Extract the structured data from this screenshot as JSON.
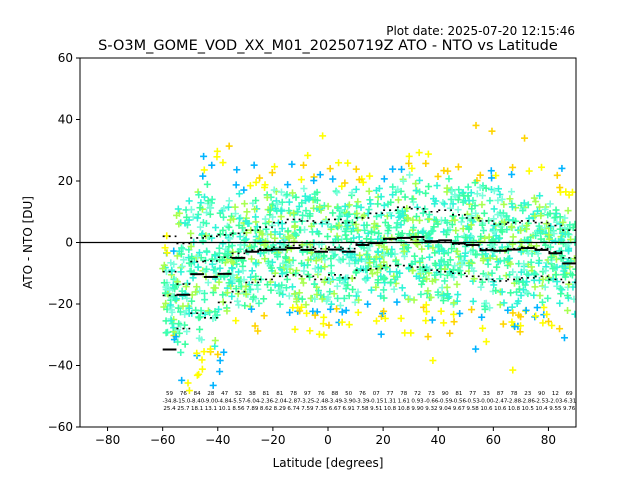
{
  "header": {
    "plot_date": "Plot date: 2025-07-20 12:15:46",
    "title": "S-O3M_GOME_VOD_XX_M01_20250719Z ATO - NTO vs Latitude"
  },
  "chart_data": {
    "type": "scatter",
    "title": "S-O3M_GOME_VOD_XX_M01_20250719Z ATO - NTO vs Latitude",
    "xlabel": "Latitude [degrees]",
    "ylabel": "ATO - NTO [DU]",
    "xlim": [
      -90,
      90
    ],
    "ylim": [
      -60,
      60
    ],
    "xticks": [
      -80,
      -60,
      -40,
      -20,
      0,
      20,
      40,
      60,
      80
    ],
    "yticks": [
      -60,
      -40,
      -20,
      0,
      20,
      40,
      60
    ],
    "grid": false,
    "zero_line": 0,
    "marker": "+",
    "point_colors": [
      "#3fffb8",
      "#3cffa0",
      "#7affdc",
      "#2ff5d8",
      "#a8ff50",
      "#ffff00",
      "#ffd400",
      "#ffb000",
      "#00b4ff",
      "#0040ff",
      "#66ff66"
    ],
    "bins": [
      {
        "lat": -57.5,
        "median": -34.8,
        "mean": -17.2,
        "p_upper": 2.0,
        "p_lower": -9.5
      },
      {
        "lat": -52.5,
        "median": -17.0,
        "mean": -13.5,
        "p_upper": -0.3,
        "p_lower": -28.0
      },
      {
        "lat": -47.5,
        "median": -10.3,
        "mean": -6.2,
        "p_upper": 1.5,
        "p_lower": -23.0
      },
      {
        "lat": -42.5,
        "median": -11.2,
        "mean": -6.0,
        "p_upper": 2.0,
        "p_lower": -24.5
      },
      {
        "lat": -37.5,
        "median": -10.2,
        "mean": -4.8,
        "p_upper": 2.5,
        "p_lower": -19.5
      },
      {
        "lat": -32.5,
        "median": -5.0,
        "mean": -3.5,
        "p_upper": 3.0,
        "p_lower": -16.0
      },
      {
        "lat": -27.5,
        "median": -3.0,
        "mean": -2.5,
        "p_upper": 4.0,
        "p_lower": -13.0
      },
      {
        "lat": -22.5,
        "median": -2.5,
        "mean": -2.0,
        "p_upper": 5.0,
        "p_lower": -12.0
      },
      {
        "lat": -17.5,
        "median": -2.3,
        "mean": -1.5,
        "p_upper": 6.5,
        "p_lower": -11.0
      },
      {
        "lat": -12.5,
        "median": -1.8,
        "mean": -1.0,
        "p_upper": 7.5,
        "p_lower": -10.5
      },
      {
        "lat": -7.5,
        "median": -2.4,
        "mean": -1.5,
        "p_upper": 7.0,
        "p_lower": -11.0
      },
      {
        "lat": -2.5,
        "median": -3.0,
        "mean": -2.0,
        "p_upper": 6.5,
        "p_lower": -12.0
      },
      {
        "lat": 2.5,
        "median": -2.3,
        "mean": -1.5,
        "p_upper": 7.5,
        "p_lower": -10.5
      },
      {
        "lat": 7.5,
        "median": -3.0,
        "mean": -2.0,
        "p_upper": 6.5,
        "p_lower": -11.5
      },
      {
        "lat": 12.5,
        "median": -0.8,
        "mean": -0.5,
        "p_upper": 8.0,
        "p_lower": -9.0
      },
      {
        "lat": 17.5,
        "median": -0.2,
        "mean": 0.0,
        "p_upper": 9.5,
        "p_lower": -8.5
      },
      {
        "lat": 22.5,
        "median": 1.2,
        "mean": 1.0,
        "p_upper": 10.5,
        "p_lower": -7.5
      },
      {
        "lat": 27.5,
        "median": 1.5,
        "mean": 1.5,
        "p_upper": 11.5,
        "p_lower": -7.5
      },
      {
        "lat": 32.5,
        "median": 1.8,
        "mean": 1.0,
        "p_upper": 11.0,
        "p_lower": -8.0
      },
      {
        "lat": 37.5,
        "median": 0.4,
        "mean": 0.5,
        "p_upper": 10.0,
        "p_lower": -9.0
      },
      {
        "lat": 42.5,
        "median": 0.7,
        "mean": 0.5,
        "p_upper": 10.5,
        "p_lower": -9.5
      },
      {
        "lat": 47.5,
        "median": -0.3,
        "mean": -0.5,
        "p_upper": 9.0,
        "p_lower": -10.0
      },
      {
        "lat": 52.5,
        "median": -0.8,
        "mean": -1.0,
        "p_upper": 8.0,
        "p_lower": -11.0
      },
      {
        "lat": 57.5,
        "median": -2.5,
        "mean": -2.0,
        "p_upper": 7.0,
        "p_lower": -12.0
      },
      {
        "lat": 62.5,
        "median": -2.7,
        "mean": -2.5,
        "p_upper": 6.0,
        "p_lower": -12.5
      },
      {
        "lat": 67.5,
        "median": -2.3,
        "mean": -2.0,
        "p_upper": 6.5,
        "p_lower": -12.0
      },
      {
        "lat": 72.5,
        "median": -1.8,
        "mean": -1.5,
        "p_upper": 7.0,
        "p_lower": -11.5
      },
      {
        "lat": 77.5,
        "median": -2.4,
        "mean": -2.0,
        "p_upper": 6.5,
        "p_lower": -11.0
      },
      {
        "lat": 82.5,
        "median": -3.5,
        "mean": -3.0,
        "p_upper": 5.5,
        "p_lower": -12.0
      },
      {
        "lat": 87.5,
        "median": -6.8,
        "mean": -5.0,
        "p_upper": 4.0,
        "p_lower": -13.0
      }
    ],
    "bin_stat_labels": [
      [
        "59",
        "-34.8",
        "25.4"
      ],
      [
        "76",
        "-15.0",
        "25.7"
      ],
      [
        "84",
        "-8.40",
        "18.1"
      ],
      [
        "28",
        "-9.00",
        "13.1"
      ],
      [
        "47",
        "-4.84",
        "10.1"
      ],
      [
        "52",
        "-5.57",
        "8.56"
      ],
      [
        "38",
        "-6.04",
        "7.89"
      ],
      [
        "81",
        "-2.36",
        "8.62"
      ],
      [
        "81",
        "-2.04",
        "8.29"
      ],
      [
        "78",
        "-2.87",
        "6.74"
      ],
      [
        "97",
        "-3.25",
        "7.59"
      ],
      [
        "76",
        "-2.48",
        "7.35"
      ],
      [
        "88",
        "-3.49",
        "6.67"
      ],
      [
        "50",
        "-3.90",
        "6.91"
      ],
      [
        "76",
        "-3.39",
        "7.58"
      ],
      [
        "07",
        "-0.15",
        "9.51"
      ],
      [
        "77",
        "1.31",
        "10.8"
      ],
      [
        "78",
        "1.61",
        "10.8"
      ],
      [
        "72",
        "0.93",
        "9.90"
      ],
      [
        "73",
        "-0.66",
        "9.32"
      ],
      [
        "90",
        "-0.59",
        "9.04"
      ],
      [
        "81",
        "-0.56",
        "9.67"
      ],
      [
        "77",
        "-0.53",
        "9.58"
      ],
      [
        "33",
        "-0.00",
        "10.6"
      ],
      [
        "87",
        "-2.47",
        "10.6"
      ],
      [
        "78",
        "-2.88",
        "10.8"
      ],
      [
        "23",
        "-2.86",
        "10.5"
      ],
      [
        "90",
        "-2.53",
        "10.4"
      ],
      [
        "12",
        "-2.03",
        "9.55"
      ],
      [
        "69",
        "-6.31",
        "9.76"
      ]
    ]
  }
}
